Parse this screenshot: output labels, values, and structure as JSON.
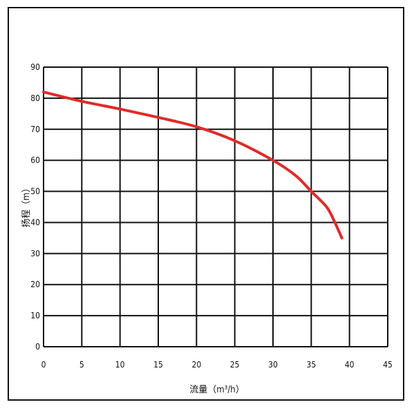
{
  "chart_data": {
    "type": "line",
    "title": "",
    "xlabel": "流量（m³/h）",
    "ylabel": "扬程（m）",
    "xlim": [
      0,
      45
    ],
    "ylim": [
      0,
      90
    ],
    "xticks": [
      0,
      5,
      10,
      15,
      20,
      25,
      30,
      35,
      40,
      45
    ],
    "yticks": [
      0,
      10,
      20,
      30,
      40,
      50,
      60,
      70,
      80,
      90
    ],
    "grid": true,
    "line_color": "#e02a2a",
    "series": [
      {
        "x": [
          0,
          5,
          10,
          15,
          20,
          25,
          30,
          33,
          35,
          37,
          38,
          39
        ],
        "y": [
          82,
          79,
          76.5,
          73.8,
          70.8,
          66.3,
          60,
          55,
          50,
          45,
          40.5,
          35
        ]
      }
    ]
  }
}
